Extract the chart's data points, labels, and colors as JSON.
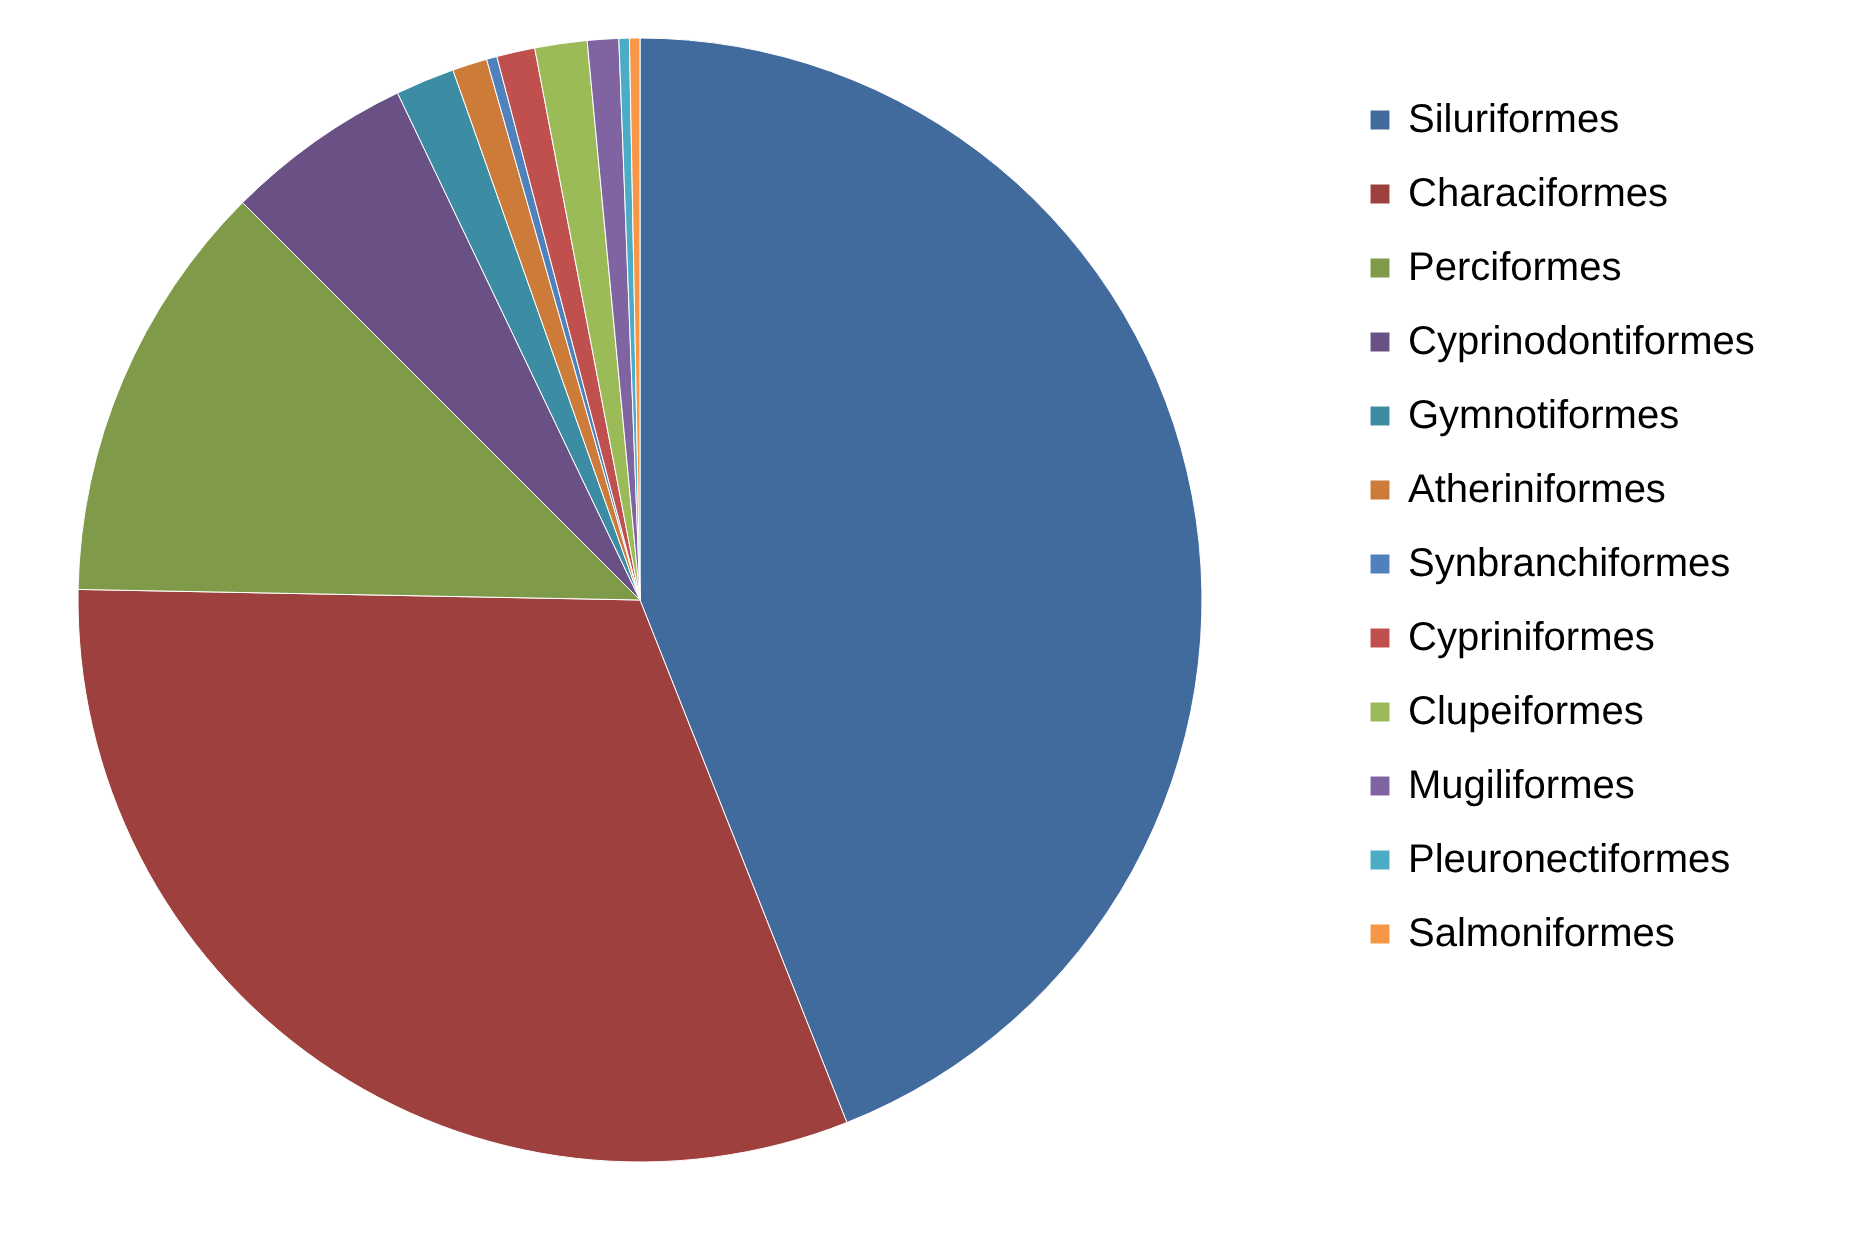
{
  "chart_data": {
    "type": "pie",
    "categories": [
      "Siluriformes",
      "Characiformes",
      "Perciformes",
      "Cyprinodontiformes",
      "Gymnotiformes",
      "Atheriniformes",
      "Synbranchiformes",
      "Cypriniformes",
      "Clupeiformes",
      "Mugiliformes",
      "Pleuronectiformes",
      "Salmoniformes"
    ],
    "values": [
      44.0,
      31.3,
      12.2,
      5.4,
      1.7,
      1.0,
      0.3,
      1.1,
      1.5,
      0.9,
      0.3,
      0.3
    ],
    "colors": [
      "#426b9d",
      "#9e413e",
      "#7f9a48",
      "#695185",
      "#3c8da3",
      "#cc7b38",
      "#4f81bd",
      "#c0504d",
      "#9bbb59",
      "#8064a2",
      "#4bacc6",
      "#f79646"
    ],
    "legend": "right"
  }
}
